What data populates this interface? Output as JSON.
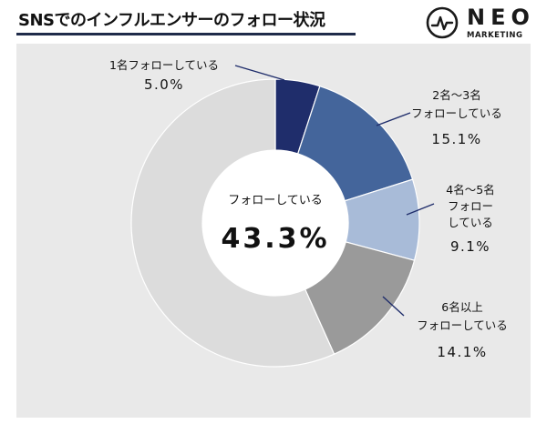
{
  "title": "SNSでのインフルエンサーのフォロー状況",
  "logo": {
    "word": "NEO",
    "sub": "MARKETING"
  },
  "colors": {
    "panel": "#e9e9e9",
    "title_rule": "#1f2b4a"
  },
  "chart_data": {
    "type": "pie",
    "variant": "donut",
    "center_label": "フォローしている",
    "center_value": "43.3%",
    "slices": [
      {
        "label_lines": [
          "1名フォローしている"
        ],
        "value": 5.0,
        "value_label": "5.0%",
        "color": "#1f2d6b"
      },
      {
        "label_lines": [
          "2名～3名",
          "フォローしている"
        ],
        "value": 15.1,
        "value_label": "15.1%",
        "color": "#44659b"
      },
      {
        "label_lines": [
          "4名～5名",
          "フォロー",
          "している"
        ],
        "value": 9.1,
        "value_label": "9.1%",
        "color": "#a8bbd8"
      },
      {
        "label_lines": [
          "6名以上",
          "フォローしている"
        ],
        "value": 14.1,
        "value_label": "14.1%",
        "color": "#9a9a9a"
      },
      {
        "label_lines": [],
        "value": 56.7,
        "value_label": "",
        "color": "#dcdcdc"
      }
    ]
  }
}
